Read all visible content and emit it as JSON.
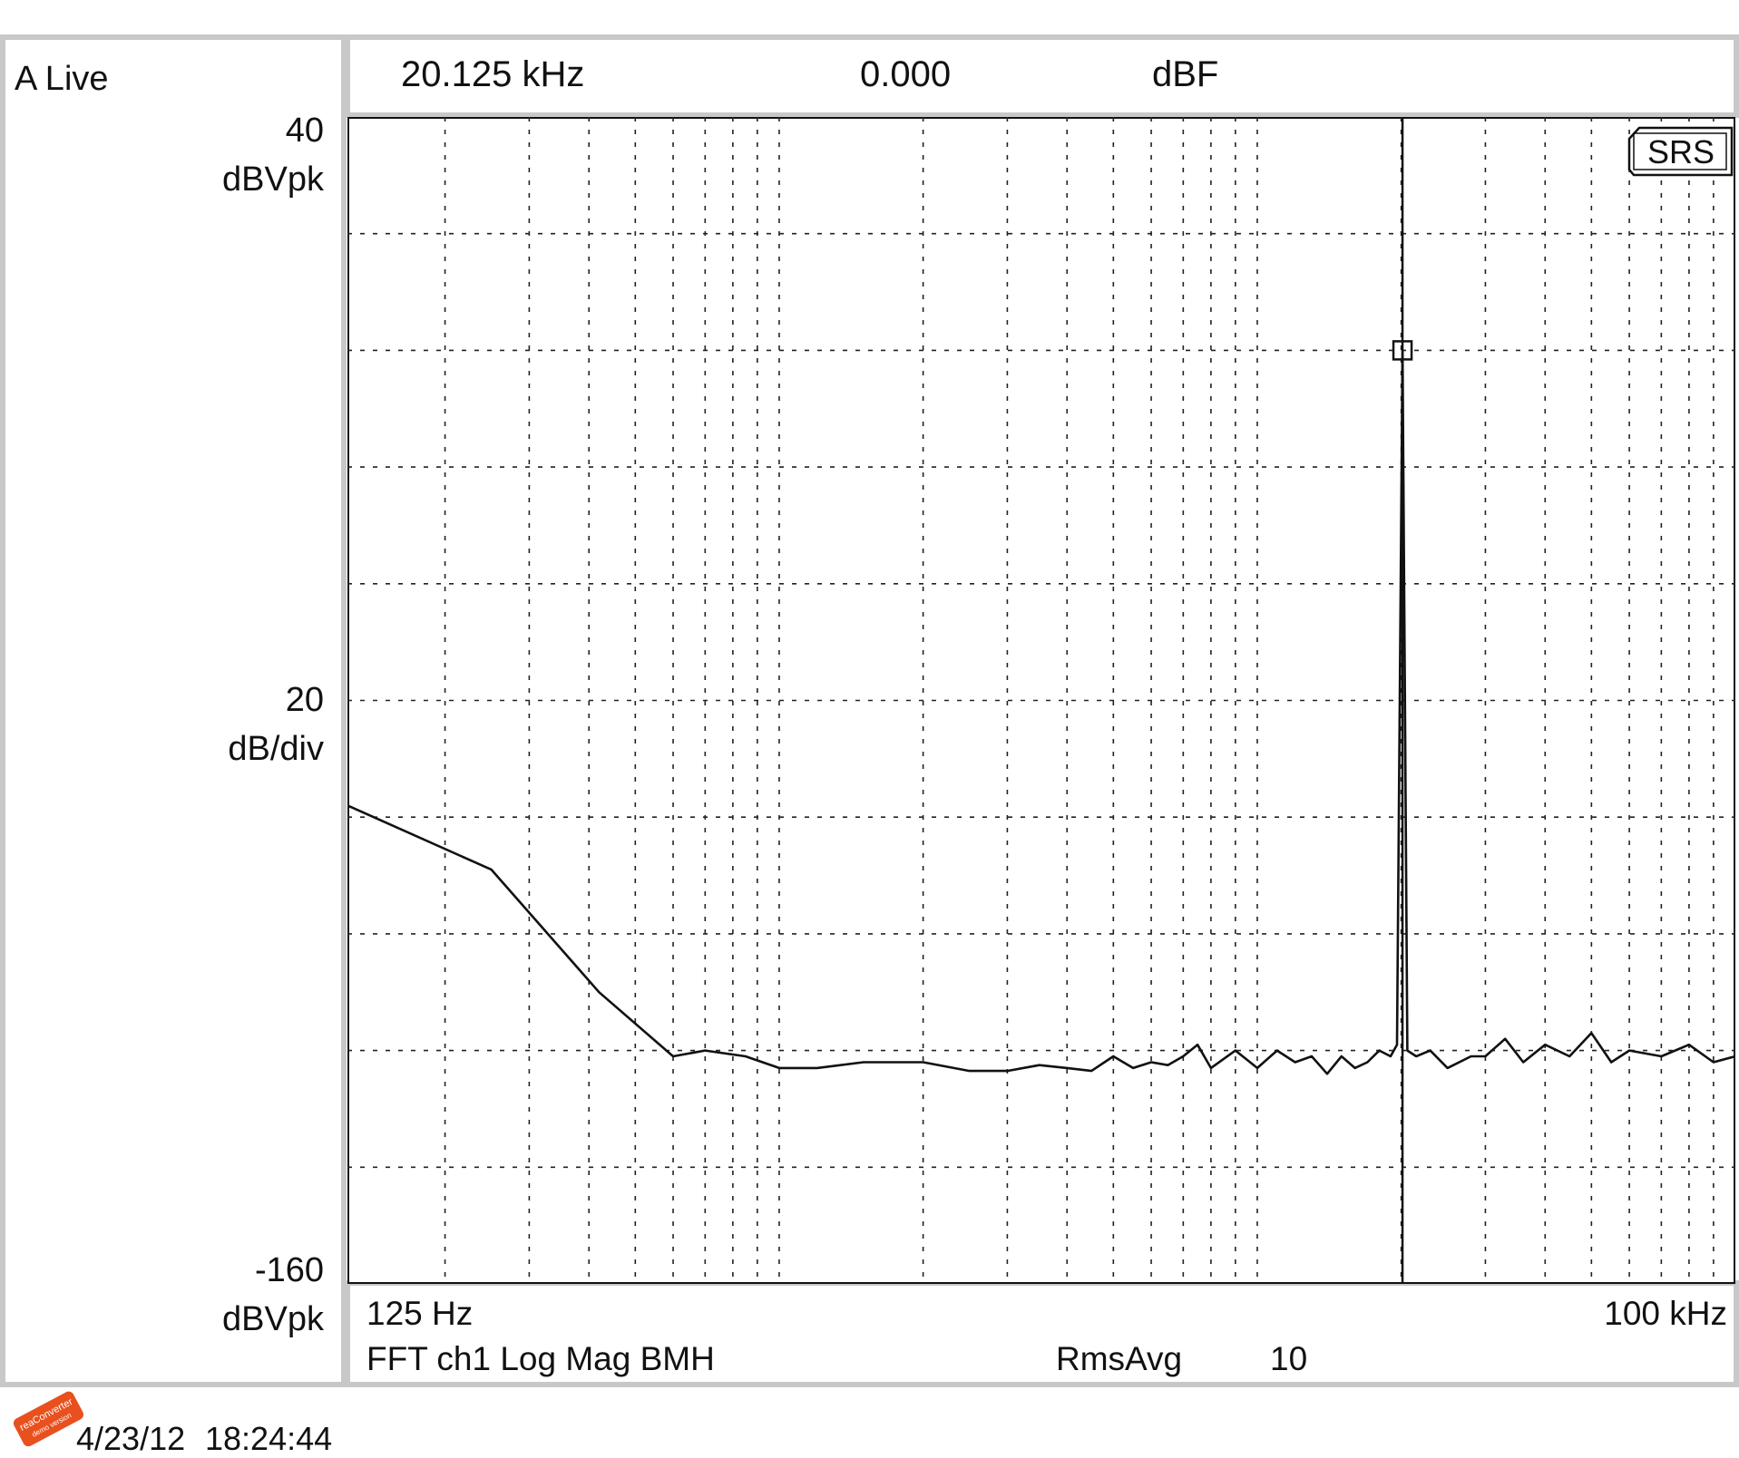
{
  "window": {
    "title": "A Live",
    "timestamp_date": "4/23/12",
    "timestamp_time": "18:24:44"
  },
  "marker": {
    "frequency": "20.125 kHz",
    "value": "0.000",
    "unit": "dBF"
  },
  "y_axis": {
    "top_value": "40",
    "top_unit": "dBVpk",
    "scale_value": "20",
    "scale_unit": "dB/div",
    "bottom_value": "-160",
    "bottom_unit": "dBVpk"
  },
  "x_axis": {
    "start": "125 Hz",
    "end": "100 kHz"
  },
  "measurement": {
    "label": "FFT ch1 Log Mag BMH",
    "avg_label": "RmsAvg",
    "avg_count": "10"
  },
  "logo": "SRS",
  "badge": {
    "line1": "reaConverter",
    "line2": "demo version"
  },
  "colors": {
    "trace": "#111111",
    "grid": "#222222",
    "frame": "#c8c8c8",
    "badge": "#e8501e"
  },
  "chart_data": {
    "type": "line",
    "title": "",
    "xlabel": "",
    "ylabel": "dBVpk",
    "x_scale": "log",
    "xlim": [
      125,
      100000
    ],
    "ylim": [
      -160,
      40
    ],
    "grid": true,
    "marker_x": 20125,
    "marker_y": 0,
    "series": [
      {
        "values_x": [
          125,
          250,
          420,
          600,
          700,
          850,
          1000,
          1200,
          1500,
          2000,
          2500,
          3000,
          3500,
          4000,
          4500,
          5000,
          5500,
          6000,
          6500,
          7000,
          7500,
          8000,
          9000,
          10000,
          11000,
          12000,
          13000,
          14000,
          15000,
          16000,
          17000,
          18000,
          19000,
          19600,
          20125,
          20600,
          21500,
          23000,
          25000,
          28000,
          30000,
          33000,
          36000,
          40000,
          45000,
          50000,
          55000,
          60000,
          70000,
          80000,
          90000,
          100000
        ],
        "values_y": [
          -78,
          -89,
          -110,
          -121,
          -120,
          -121,
          -123,
          -123,
          -122,
          -122,
          -123.5,
          -123.5,
          -122.5,
          -123,
          -123.5,
          -121,
          -123,
          -122,
          -122.5,
          -121,
          -119,
          -123,
          -120,
          -123,
          -120,
          -122,
          -121,
          -124,
          -121,
          -123,
          -122,
          -120,
          -121,
          -119,
          0,
          -120,
          -121,
          -120,
          -123,
          -121,
          -121,
          -118,
          -122,
          -119,
          -121,
          -117,
          -122,
          -120,
          -121,
          -119,
          -122,
          -121
        ]
      }
    ]
  }
}
